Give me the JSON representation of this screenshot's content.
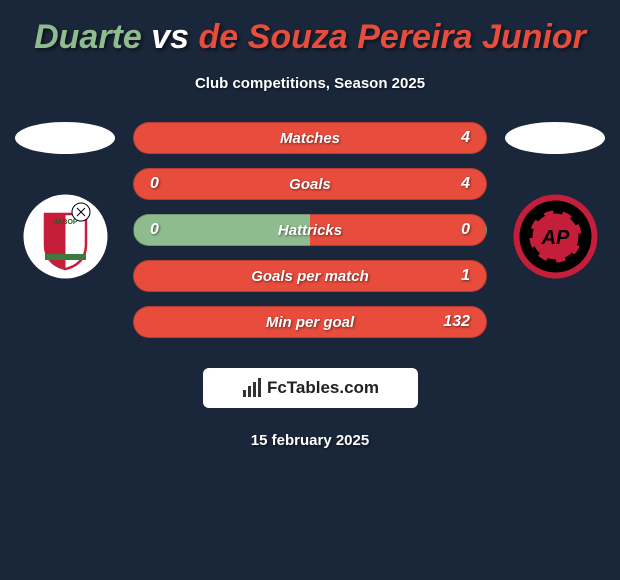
{
  "title": {
    "player1": "Duarte",
    "vs": "vs",
    "player2": "de Souza Pereira Junior",
    "player1_color": "#8fbc8f",
    "vs_color": "#ffffff",
    "player2_color": "#e74c3c"
  },
  "subtitle": "Club competitions, Season 2025",
  "left_club": {
    "bg_color": "#ffffff",
    "inner_colors": [
      "#c41e3a",
      "#ffffff",
      "#3d7a3d"
    ],
    "label": "JABOP"
  },
  "right_club": {
    "bg_color": "#000000",
    "ring_color": "#c41e3a",
    "inner_color": "#c41e3a"
  },
  "stats": [
    {
      "label": "Matches",
      "left_val": "",
      "right_val": "4",
      "left_color": "#8fbc8f",
      "right_color": "#e74c3c",
      "label_color": "#ffffff",
      "left_val_color": "#ffffff",
      "right_val_color": "#ffffff",
      "gradient_split": 0
    },
    {
      "label": "Goals",
      "left_val": "0",
      "right_val": "4",
      "left_color": "#8fbc8f",
      "right_color": "#e74c3c",
      "label_color": "#ffffff",
      "left_val_color": "#ffffff",
      "right_val_color": "#ffffff",
      "gradient_split": 0
    },
    {
      "label": "Hattricks",
      "left_val": "0",
      "right_val": "0",
      "left_color": "#8fbc8f",
      "right_color": "#e74c3c",
      "label_color": "#ffffff",
      "left_val_color": "#ffffff",
      "right_val_color": "#ffffff",
      "gradient_split": 50
    },
    {
      "label": "Goals per match",
      "left_val": "",
      "right_val": "1",
      "left_color": "#8fbc8f",
      "right_color": "#e74c3c",
      "label_color": "#ffffff",
      "left_val_color": "#ffffff",
      "right_val_color": "#ffffff",
      "gradient_split": 0
    },
    {
      "label": "Min per goal",
      "left_val": "",
      "right_val": "132",
      "left_color": "#8fbc8f",
      "right_color": "#e74c3c",
      "label_color": "#ffffff",
      "left_val_color": "#ffffff",
      "right_val_color": "#ffffff",
      "gradient_split": 0
    }
  ],
  "brand": "FcTables.com",
  "date": "15 february 2025",
  "background_color": "#1a2639"
}
